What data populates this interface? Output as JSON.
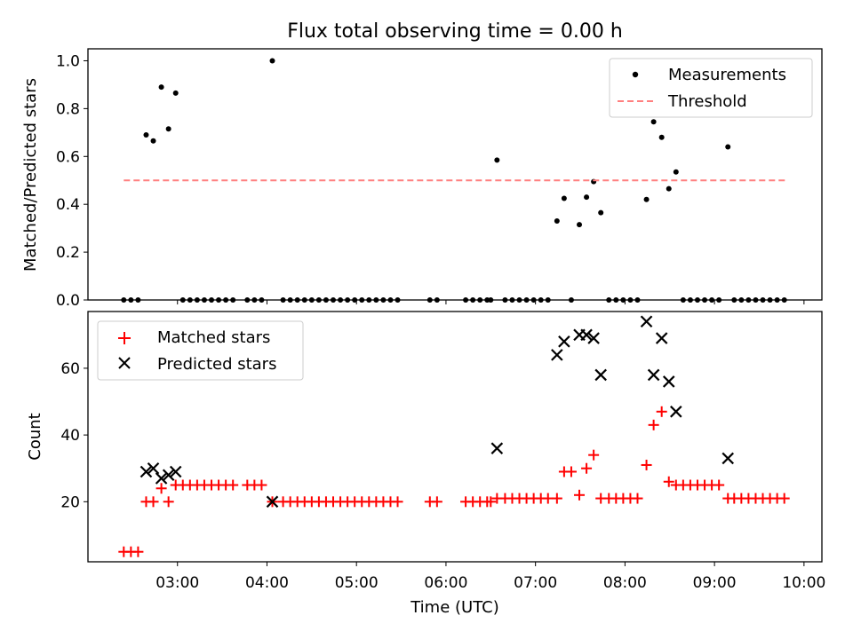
{
  "figure": {
    "title": "Flux total observing time = 0.00 h",
    "xlabel": "Time (UTC)",
    "x_ticks": [
      {
        "t": 3.0,
        "label": "03:00"
      },
      {
        "t": 4.0,
        "label": "04:00"
      },
      {
        "t": 5.0,
        "label": "05:00"
      },
      {
        "t": 6.0,
        "label": "06:00"
      },
      {
        "t": 7.0,
        "label": "07:00"
      },
      {
        "t": 8.0,
        "label": "08:00"
      },
      {
        "t": 9.0,
        "label": "09:00"
      },
      {
        "t": 10.0,
        "label": "10:00"
      }
    ],
    "xlim_hours": [
      2.0,
      10.2
    ],
    "colors": {
      "measurements": "#000000",
      "threshold": "#ff7f7f",
      "matched": "#ff0000",
      "predicted": "#000000"
    }
  },
  "chart_data": [
    {
      "type": "scatter",
      "ylabel": "Matched/Predicted stars",
      "ylim": [
        0,
        1.05
      ],
      "y_ticks": [
        "0.0",
        "0.2",
        "0.4",
        "0.6",
        "0.8",
        "1.0"
      ],
      "legend_position": "top-right",
      "series": [
        {
          "name": "Measurements",
          "marker": "dot",
          "x": [
            2.4,
            2.48,
            2.56,
            2.65,
            2.73,
            2.82,
            2.9,
            2.98,
            3.06,
            3.14,
            3.22,
            3.3,
            3.38,
            3.46,
            3.54,
            3.62,
            3.78,
            3.86,
            3.94,
            4.06,
            4.18,
            4.26,
            4.34,
            4.42,
            4.5,
            4.58,
            4.66,
            4.74,
            4.82,
            4.9,
            4.98,
            5.06,
            5.14,
            5.22,
            5.3,
            5.38,
            5.46,
            5.82,
            5.9,
            6.22,
            6.3,
            6.38,
            6.46,
            6.5,
            6.57,
            6.66,
            6.74,
            6.82,
            6.9,
            6.98,
            7.06,
            7.14,
            7.24,
            7.32,
            7.4,
            7.49,
            7.57,
            7.65,
            7.73,
            7.82,
            7.9,
            7.98,
            8.06,
            8.14,
            8.24,
            8.32,
            8.41,
            8.49,
            8.57,
            8.65,
            8.73,
            8.81,
            8.89,
            8.97,
            9.05,
            9.15,
            9.22,
            9.3,
            9.38,
            9.46,
            9.54,
            9.62,
            9.7,
            9.78
          ],
          "y": [
            0,
            0,
            0,
            0.69,
            0.665,
            0.89,
            0.715,
            0.865,
            0,
            0,
            0,
            0,
            0,
            0,
            0,
            0,
            0,
            0,
            0,
            1.0,
            0,
            0,
            0,
            0,
            0,
            0,
            0,
            0,
            0,
            0,
            0,
            0,
            0,
            0,
            0,
            0,
            0,
            0,
            0,
            0,
            0,
            0,
            0,
            0,
            0.585,
            0,
            0,
            0,
            0,
            0,
            0,
            0,
            0.33,
            0.425,
            0,
            0.315,
            0.43,
            0.495,
            0.365,
            0,
            0,
            0,
            0,
            0,
            0.42,
            0.745,
            0.68,
            0.465,
            0.535,
            0,
            0,
            0,
            0,
            0,
            0,
            0.64,
            0,
            0,
            0,
            0,
            0,
            0,
            0,
            0
          ]
        },
        {
          "name": "Threshold",
          "style": "dashed-line",
          "x": [
            2.4,
            9.82
          ],
          "y": [
            0.5,
            0.5
          ]
        }
      ]
    },
    {
      "type": "scatter",
      "ylabel": "Count",
      "ylim": [
        2,
        77
      ],
      "y_ticks": [
        "20",
        "40",
        "60"
      ],
      "legend_position": "top-left",
      "series": [
        {
          "name": "Matched stars",
          "marker": "plus",
          "x": [
            2.4,
            2.48,
            2.56,
            2.65,
            2.73,
            2.82,
            2.9,
            2.98,
            3.06,
            3.14,
            3.22,
            3.3,
            3.38,
            3.46,
            3.54,
            3.62,
            3.78,
            3.86,
            3.94,
            4.06,
            4.18,
            4.26,
            4.34,
            4.42,
            4.5,
            4.58,
            4.66,
            4.74,
            4.82,
            4.9,
            4.98,
            5.06,
            5.14,
            5.22,
            5.3,
            5.38,
            5.46,
            5.82,
            5.9,
            6.22,
            6.3,
            6.38,
            6.46,
            6.5,
            6.57,
            6.66,
            6.74,
            6.82,
            6.9,
            6.98,
            7.06,
            7.14,
            7.24,
            7.32,
            7.4,
            7.49,
            7.57,
            7.65,
            7.73,
            7.82,
            7.9,
            7.98,
            8.06,
            8.14,
            8.24,
            8.32,
            8.41,
            8.49,
            8.57,
            8.65,
            8.73,
            8.81,
            8.89,
            8.97,
            9.05,
            9.15,
            9.22,
            9.3,
            9.38,
            9.46,
            9.54,
            9.62,
            9.7,
            9.78
          ],
          "y": [
            5,
            5,
            5,
            20,
            20,
            24,
            20,
            25,
            25,
            25,
            25,
            25,
            25,
            25,
            25,
            25,
            25,
            25,
            25,
            20,
            20,
            20,
            20,
            20,
            20,
            20,
            20,
            20,
            20,
            20,
            20,
            20,
            20,
            20,
            20,
            20,
            20,
            20,
            20,
            20,
            20,
            20,
            20,
            20,
            21,
            21,
            21,
            21,
            21,
            21,
            21,
            21,
            21,
            29,
            29,
            22,
            30,
            34,
            21,
            21,
            21,
            21,
            21,
            21,
            31,
            43,
            47,
            26,
            25,
            25,
            25,
            25,
            25,
            25,
            25,
            21,
            21,
            21,
            21,
            21,
            21,
            21,
            21,
            21
          ]
        },
        {
          "name": "Predicted stars",
          "marker": "x",
          "x": [
            2.65,
            2.73,
            2.82,
            2.9,
            2.98,
            4.06,
            6.57,
            7.24,
            7.32,
            7.49,
            7.57,
            7.65,
            7.73,
            8.24,
            8.32,
            8.41,
            8.49,
            8.57,
            9.15
          ],
          "y": [
            29,
            30,
            27,
            28,
            29,
            20,
            36,
            64,
            68,
            70,
            70,
            69,
            58,
            74,
            58,
            69,
            56,
            47,
            33
          ]
        }
      ]
    }
  ]
}
